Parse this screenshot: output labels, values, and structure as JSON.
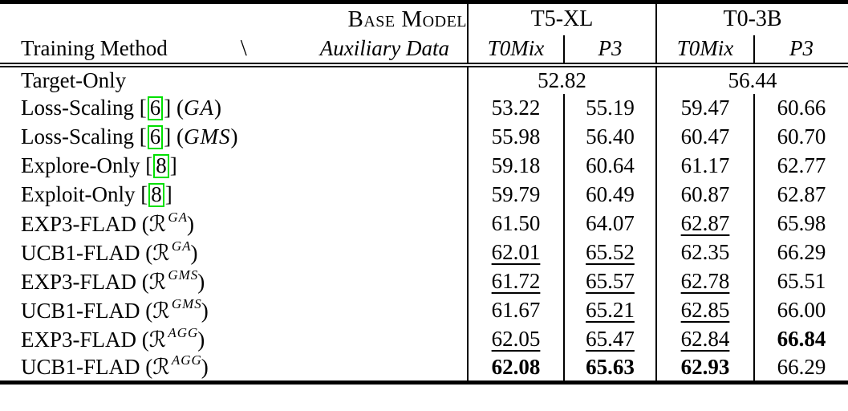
{
  "colors": {
    "citation_box": "#00E000",
    "rule": "#000000",
    "background": "#FFFFFF",
    "text": "#000000"
  },
  "header": {
    "base_model": "Base Model",
    "training_method": "Training Method",
    "divider_glyph": "\\",
    "auxiliary_data": "Auxiliary Data",
    "t5xl": "T5-XL",
    "t03b": "T0-3B",
    "sub_labels": [
      "T0Mix",
      "P3",
      "T0Mix",
      "P3"
    ]
  },
  "rows": [
    {
      "method": {
        "text": "Target-Only"
      },
      "span_values": [
        {
          "v": "52.82"
        },
        {
          "v": "56.44"
        }
      ]
    },
    {
      "method": {
        "text": "Loss-Scaling",
        "cite": "6",
        "math": "GA"
      },
      "values": [
        {
          "v": "53.22"
        },
        {
          "v": "55.19"
        },
        {
          "v": "59.47"
        },
        {
          "v": "60.66"
        }
      ]
    },
    {
      "method": {
        "text": "Loss-Scaling",
        "cite": "6",
        "math": "GMS"
      },
      "values": [
        {
          "v": "55.98"
        },
        {
          "v": "56.40"
        },
        {
          "v": "60.47"
        },
        {
          "v": "60.70"
        }
      ]
    },
    {
      "method": {
        "text": "Explore-Only",
        "cite": "8"
      },
      "values": [
        {
          "v": "59.18"
        },
        {
          "v": "60.64"
        },
        {
          "v": "61.17"
        },
        {
          "v": "62.77"
        }
      ]
    },
    {
      "method": {
        "text": "Exploit-Only",
        "cite": "8"
      },
      "values": [
        {
          "v": "59.79"
        },
        {
          "v": "60.49"
        },
        {
          "v": "60.87"
        },
        {
          "v": "62.87"
        }
      ]
    },
    {
      "method": {
        "text": "EXP3-FLAD",
        "mathcal": "ℛ",
        "sup": "GA"
      },
      "values": [
        {
          "v": "61.50"
        },
        {
          "v": "64.07"
        },
        {
          "v": "62.87",
          "u": true
        },
        {
          "v": "65.98"
        }
      ]
    },
    {
      "method": {
        "text": "UCB1-FLAD",
        "mathcal": "ℛ",
        "sup": "GA"
      },
      "values": [
        {
          "v": "62.01",
          "u": true
        },
        {
          "v": "65.52",
          "u": true
        },
        {
          "v": "62.35"
        },
        {
          "v": "66.29"
        }
      ]
    },
    {
      "method": {
        "text": "EXP3-FLAD",
        "mathcal": "ℛ",
        "sup": "GMS"
      },
      "values": [
        {
          "v": "61.72",
          "u": true
        },
        {
          "v": "65.57",
          "u": true
        },
        {
          "v": "62.78",
          "u": true
        },
        {
          "v": "65.51"
        }
      ]
    },
    {
      "method": {
        "text": "UCB1-FLAD",
        "mathcal": "ℛ",
        "sup": "GMS"
      },
      "values": [
        {
          "v": "61.67"
        },
        {
          "v": "65.21",
          "u": true
        },
        {
          "v": "62.85",
          "u": true
        },
        {
          "v": "66.00"
        }
      ]
    },
    {
      "method": {
        "text": "EXP3-FLAD",
        "mathcal": "ℛ",
        "sup": "AGG"
      },
      "values": [
        {
          "v": "62.05",
          "u": true
        },
        {
          "v": "65.47",
          "u": true
        },
        {
          "v": "62.84",
          "u": true
        },
        {
          "v": "66.84",
          "b": true
        }
      ]
    },
    {
      "method": {
        "text": "UCB1-FLAD",
        "mathcal": "ℛ",
        "sup": "AGG"
      },
      "values": [
        {
          "v": "62.08",
          "b": true
        },
        {
          "v": "65.63",
          "b": true
        },
        {
          "v": "62.93",
          "b": true
        },
        {
          "v": "66.29"
        }
      ]
    }
  ]
}
